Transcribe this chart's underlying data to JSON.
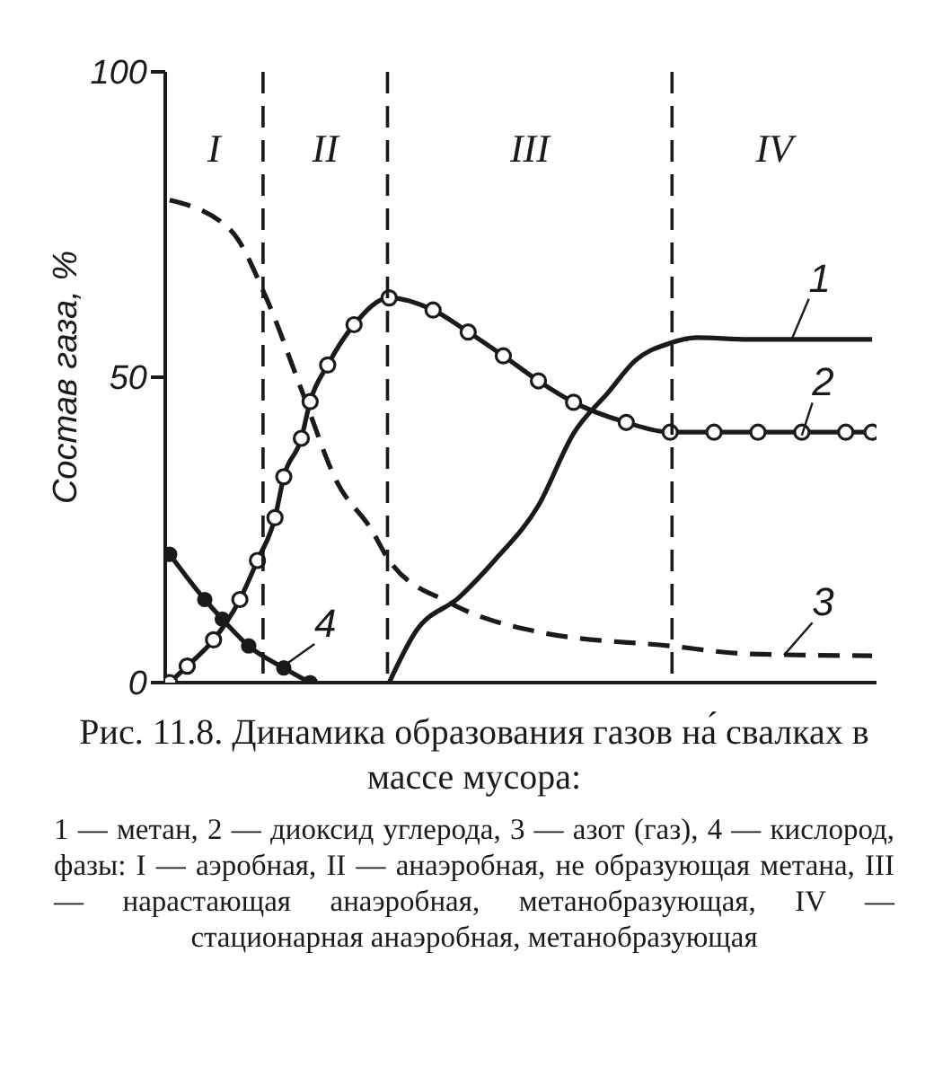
{
  "chart_data": {
    "type": "line",
    "title": "Рис. 11.8. Динамика образования газов на́ свалках в массе мусора:",
    "annotations": [
      "I",
      "II",
      "III",
      "IV",
      "1 — метан, 2 — диоксид углерода, 3 — азот (газ), 4 — кислород, фазы: I — аэробная, II — анаэробная, не образующая метана, III — нарастающая анаэробная, метанобразующая, IV — стационарная анаэробная, метанобразующая"
    ],
    "ylabel": "Состав газа, %",
    "ylim": [
      0,
      100
    ],
    "yticks": [
      0,
      50,
      100
    ],
    "categories": [
      null,
      null,
      null,
      null,
      null,
      null,
      null,
      null,
      null,
      null,
      null,
      null,
      null,
      null,
      null,
      null,
      null,
      null,
      null,
      null,
      null,
      null,
      null,
      null,
      null,
      null,
      null,
      null,
      null,
      null,
      null,
      null,
      null,
      null,
      null,
      null,
      null,
      null,
      null,
      null,
      null,
      null,
      null,
      null,
      null,
      null,
      null,
      null,
      null,
      null,
      null,
      null,
      null,
      null,
      null,
      null,
      null,
      null,
      null,
      null,
      null,
      null,
      null,
      null,
      null,
      null,
      null,
      null,
      null,
      null,
      null,
      null,
      null,
      null,
      null,
      null,
      null,
      null,
      null,
      null,
      null
    ],
    "series": [
      {
        "name": "1",
        "color": "#1a1a1a",
        "line_style": "solid",
        "marker": "none",
        "values": [
          null,
          null,
          null,
          null,
          null,
          null,
          null,
          null,
          null,
          null,
          null,
          null,
          null,
          null,
          null,
          null,
          null,
          null,
          null,
          null,
          null,
          null,
          null,
          null,
          null,
          0,
          null,
          null,
          8.3,
          null,
          null,
          null,
          null,
          14,
          null,
          null,
          null,
          20,
          null,
          null,
          null,
          null,
          29,
          null,
          null,
          null,
          40.8,
          null,
          null,
          null,
          47.6,
          null,
          null,
          52.7,
          null,
          null,
          null,
          55.6,
          null,
          null,
          56.5,
          null,
          null,
          null,
          null,
          null,
          56.2,
          null,
          null,
          null,
          null,
          null,
          null,
          null,
          null,
          null,
          null,
          null,
          null,
          null,
          56.2
        ]
      },
      {
        "name": "2",
        "color": "#1a1a1a",
        "line_style": "solid",
        "marker": "circle",
        "values": [
          0,
          null,
          2.7,
          null,
          null,
          7,
          null,
          null,
          13.6,
          null,
          20,
          null,
          27,
          33.7,
          null,
          40,
          46,
          null,
          52,
          null,
          null,
          58.6,
          null,
          null,
          null,
          63,
          null,
          null,
          null,
          null,
          61,
          null,
          null,
          null,
          57.4,
          null,
          null,
          null,
          53.5,
          null,
          null,
          null,
          49.4,
          null,
          null,
          null,
          45.9,
          null,
          null,
          null,
          null,
          null,
          42.6,
          null,
          null,
          null,
          null,
          41,
          null,
          null,
          null,
          null,
          41,
          null,
          null,
          null,
          null,
          41,
          null,
          null,
          null,
          null,
          41,
          null,
          null,
          null,
          null,
          41,
          null,
          null,
          41
        ]
      },
      {
        "name": "3",
        "color": "#1a1a1a",
        "line_style": "dashed",
        "marker": "none",
        "values": [
          79,
          null,
          null,
          null,
          null,
          null,
          null,
          74,
          null,
          null,
          null,
          63,
          null,
          null,
          null,
          48,
          null,
          null,
          null,
          33,
          null,
          null,
          null,
          25,
          null,
          20,
          null,
          null,
          null,
          null,
          null,
          null,
          13,
          null,
          null,
          null,
          null,
          null,
          null,
          null,
          null,
          null,
          8.3,
          null,
          null,
          null,
          null,
          null,
          null,
          null,
          null,
          null,
          null,
          null,
          null,
          null,
          null,
          6,
          null,
          null,
          null,
          null,
          null,
          null,
          null,
          null,
          4.7,
          null,
          null,
          null,
          null,
          null,
          null,
          null,
          null,
          null,
          null,
          null,
          null,
          null,
          4.4
        ]
      },
      {
        "name": "4",
        "color": "#1a1a1a",
        "line_style": "solid",
        "marker": "circle",
        "values": [
          21,
          null,
          null,
          null,
          13.6,
          null,
          10.4,
          null,
          null,
          6,
          null,
          null,
          null,
          2.4,
          null,
          null,
          0,
          null,
          null,
          null,
          null,
          null,
          null,
          null,
          null,
          null,
          null,
          null,
          null,
          null,
          null,
          null,
          null,
          null,
          null,
          null,
          null,
          null,
          null,
          null,
          null,
          null,
          null,
          null,
          null,
          null,
          null,
          null,
          null,
          null,
          null,
          null,
          null,
          null,
          null,
          null,
          null,
          null,
          null,
          null,
          null,
          null,
          null,
          null,
          null,
          null,
          null,
          null,
          null,
          null,
          null,
          null,
          null,
          null,
          null,
          null,
          null,
          null,
          null,
          null,
          null
        ]
      }
    ]
  }
}
